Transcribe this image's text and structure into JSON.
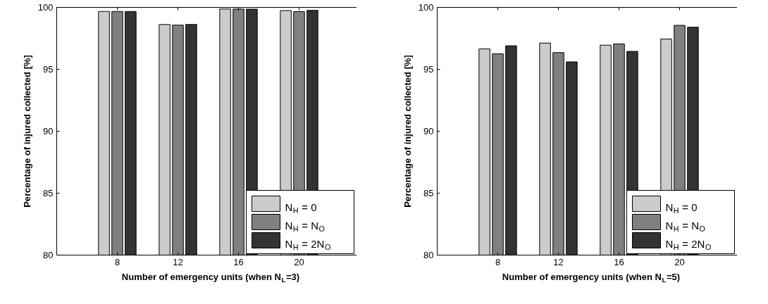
{
  "chart_data": [
    {
      "type": "bar",
      "xlabel": "Number of emergency units (when N$_{L}$=3)",
      "ylabel": "Percentage of injured collected [%]",
      "categories": [
        "8",
        "12",
        "16",
        "20"
      ],
      "ylim": [
        80,
        100
      ],
      "yticks": [
        80,
        85,
        90,
        95,
        100
      ],
      "legend": "bottom right",
      "grid": false,
      "series": [
        {
          "name": "N$_{H}$ = 0",
          "color": "#cccccc",
          "values": [
            99.67,
            98.62,
            99.87,
            99.74
          ]
        },
        {
          "name": "N$_{H}$ = N$_{O}$",
          "color": "#808080",
          "values": [
            99.67,
            98.57,
            99.87,
            99.66
          ]
        },
        {
          "name": "N$_{H}$ = 2N$_{O}$",
          "color": "#333333",
          "values": [
            99.67,
            98.62,
            99.86,
            99.76
          ]
        }
      ]
    },
    {
      "type": "bar",
      "xlabel": "Number of emergency units (when N$_{L}$=5)",
      "ylabel": "Percentage of injured collected [%]",
      "categories": [
        "8",
        "12",
        "16",
        "20"
      ],
      "ylim": [
        80,
        100
      ],
      "yticks": [
        80,
        85,
        90,
        95,
        100
      ],
      "legend": "bottom right",
      "grid": false,
      "series": [
        {
          "name": "N$_{H}$ = 0",
          "color": "#cccccc",
          "values": [
            96.65,
            97.12,
            96.95,
            97.45
          ]
        },
        {
          "name": "N$_{H}$ = N$_{O}$",
          "color": "#808080",
          "values": [
            96.25,
            96.35,
            97.05,
            98.55
          ]
        },
        {
          "name": "N$_{H}$ = 2N$_{O}$",
          "color": "#333333",
          "values": [
            96.9,
            95.6,
            96.45,
            98.4
          ]
        }
      ]
    }
  ]
}
